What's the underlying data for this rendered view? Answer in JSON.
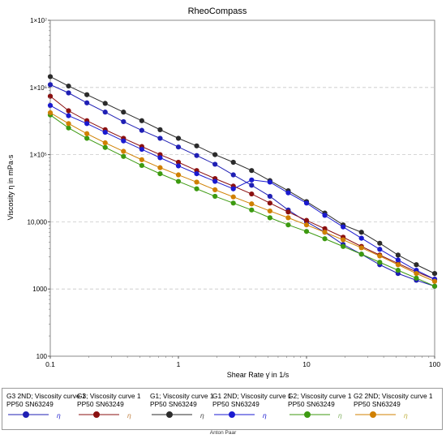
{
  "chart_data": {
    "type": "line",
    "title": "RheoCompass",
    "xlabel": "Shear Rate  γ̇  in 1/s",
    "ylabel": "Viscosity  η  in mPa·s",
    "xscale": "log",
    "yscale": "log",
    "xlim": [
      0.1,
      100
    ],
    "ylim": [
      100,
      10000000
    ],
    "x_ticks": [
      {
        "value": 0.1,
        "label": "0.1"
      },
      {
        "value": 1,
        "label": "1"
      },
      {
        "value": 10,
        "label": "10"
      },
      {
        "value": 100,
        "label": "100"
      }
    ],
    "y_ticks": [
      {
        "value": 100,
        "label": "100"
      },
      {
        "value": 1000,
        "label": "1000"
      },
      {
        "value": 10000,
        "label": "10,000"
      },
      {
        "value": 100000,
        "label": "1×10⁵"
      },
      {
        "value": 1000000,
        "label": "1×10⁶"
      },
      {
        "value": 10000000,
        "label": "1×10⁷"
      }
    ],
    "grid": {
      "x": false,
      "y": true,
      "style": "dashed"
    },
    "legend_position": "bottom",
    "x": [
      0.1,
      0.1389,
      0.1931,
      0.2683,
      0.3728,
      0.518,
      0.7197,
      1,
      1.389,
      1.931,
      2.683,
      3.728,
      5.18,
      7.197,
      10,
      13.89,
      19.31,
      26.83,
      37.28,
      51.8,
      71.97,
      100
    ],
    "series": [
      {
        "name": "G3 2ND; Viscosity curve 1",
        "sample": "PP50 SN63249",
        "symbol": "η",
        "color": "#1f1fb4",
        "symbol_color": "#2a2ad0",
        "values": [
          1100000,
          830000,
          590000,
          430000,
          310000,
          230000,
          175000,
          130000,
          97000,
          72000,
          50000,
          35000,
          24000,
          15000,
          10000,
          7000,
          4600,
          3300,
          2300,
          1700,
          1350,
          1100
        ]
      },
      {
        "name": "G3; Viscosity curve 1",
        "sample": "PP50 SN63249",
        "symbol": "η",
        "color": "#8b1010",
        "symbol_color": "#c08040",
        "values": [
          740000,
          450000,
          320000,
          235000,
          175000,
          132000,
          100000,
          77000,
          58000,
          44000,
          34000,
          26000,
          19000,
          14000,
          10500,
          7900,
          5900,
          4300,
          3200,
          2400,
          1800,
          1400
        ]
      },
      {
        "name": "G1; Viscosity curve 1",
        "sample": "PP50 SN63249",
        "symbol": "η",
        "color": "#2b2b2b",
        "symbol_color": "#444444",
        "values": [
          1450000,
          1050000,
          780000,
          580000,
          430000,
          320000,
          235000,
          175000,
          135000,
          100000,
          77000,
          58000,
          41000,
          29000,
          20000,
          13500,
          9000,
          7000,
          4800,
          3200,
          2300,
          1700
        ]
      },
      {
        "name": "G1 2ND; Viscosity curve 1",
        "sample": "PP50 SN63249",
        "symbol": "η",
        "color": "#1a1ad0",
        "symbol_color": "#1a1ad0",
        "values": [
          540000,
          380000,
          290000,
          215000,
          160000,
          120000,
          90000,
          68000,
          52000,
          40000,
          31000,
          42000,
          39000,
          27000,
          19000,
          12500,
          8400,
          5700,
          3900,
          2700,
          1900,
          1400
        ]
      },
      {
        "name": "G2; Viscosity curve 1",
        "sample": "PP50 SN63249",
        "symbol": "η",
        "color": "#3c9a10",
        "symbol_color": "#80b060",
        "values": [
          390000,
          250000,
          175000,
          128000,
          94000,
          69000,
          52000,
          40000,
          31000,
          24000,
          19000,
          15000,
          11500,
          9000,
          7200,
          5600,
          4300,
          3300,
          2500,
          1900,
          1450,
          1100
        ]
      },
      {
        "name": "G2 2ND; Viscosity curve 1",
        "sample": "PP50 SN63249",
        "symbol": "η",
        "color": "#d08000",
        "symbol_color": "#c0b040",
        "values": [
          420000,
          290000,
          205000,
          150000,
          112000,
          84000,
          64000,
          50000,
          39000,
          30000,
          23500,
          18500,
          14500,
          11500,
          9000,
          7000,
          5400,
          4100,
          3100,
          2300,
          1700,
          1300
        ]
      }
    ]
  },
  "footer": "Anton Paar"
}
